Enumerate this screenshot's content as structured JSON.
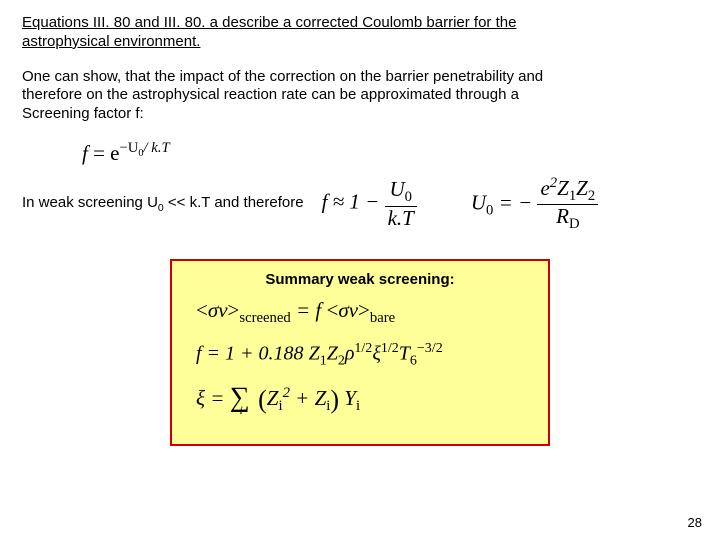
{
  "intro": {
    "line1": "Equations III. 80 and III. 80. a describe a corrected Coulomb barrier for the",
    "line2": "astrophysical environment."
  },
  "para2": {
    "line1": "One can show, that the impact of the correction on the barrier penetrability and",
    "line2": "therefore on the astrophysical reaction rate can be approximated through a",
    "line3": "Screening factor f:"
  },
  "eq1": {
    "lhs": "f",
    "exp_prefix": "−U",
    "exp_sub": "0",
    "exp_suffix": "/ k.T"
  },
  "weak_text": "In weak screening U",
  "weak_sub": "0",
  "weak_tail": " << k.T and therefore",
  "eq2": {
    "f": "f",
    "approx": "≈ 1 −",
    "num": "U",
    "num_sub": "0",
    "den": "k.T"
  },
  "eq3": {
    "u": "U",
    "u_sub": "0",
    "eq": " = −",
    "num_a": "e",
    "num_a_sup": "2",
    "num_b": "Z",
    "num_b_sub": "1",
    "num_c": "Z",
    "num_c_sub": "2",
    "den": "R",
    "den_sub": "D"
  },
  "summary": {
    "title": "Summary weak screening:",
    "line1": {
      "lt": "<",
      "sv": "σv",
      "gt": ">",
      "sub1": "screened",
      "eq": "=",
      "f": "f",
      "sub2": "bare"
    },
    "line2": {
      "pre": "f = 1 + 0.188 ",
      "Z1": "Z",
      "s1": "1",
      "Z2": "Z",
      "s2": "2",
      "rho": "ρ",
      "rho_sup": "1/2",
      "xi": "ξ",
      "xi_sup": "1/2",
      "T": "T",
      "T_sub": "6",
      "T_sup": "−3/2"
    },
    "line3": {
      "xi": "ξ =",
      "sum_sub": "i",
      "Zi": "Z",
      "i": "i",
      "p2": "2",
      "plus": " + ",
      "Yi": "Y"
    }
  },
  "page": "28",
  "colors": {
    "box_bg": "#ffff99",
    "box_border": "#cc0000"
  }
}
